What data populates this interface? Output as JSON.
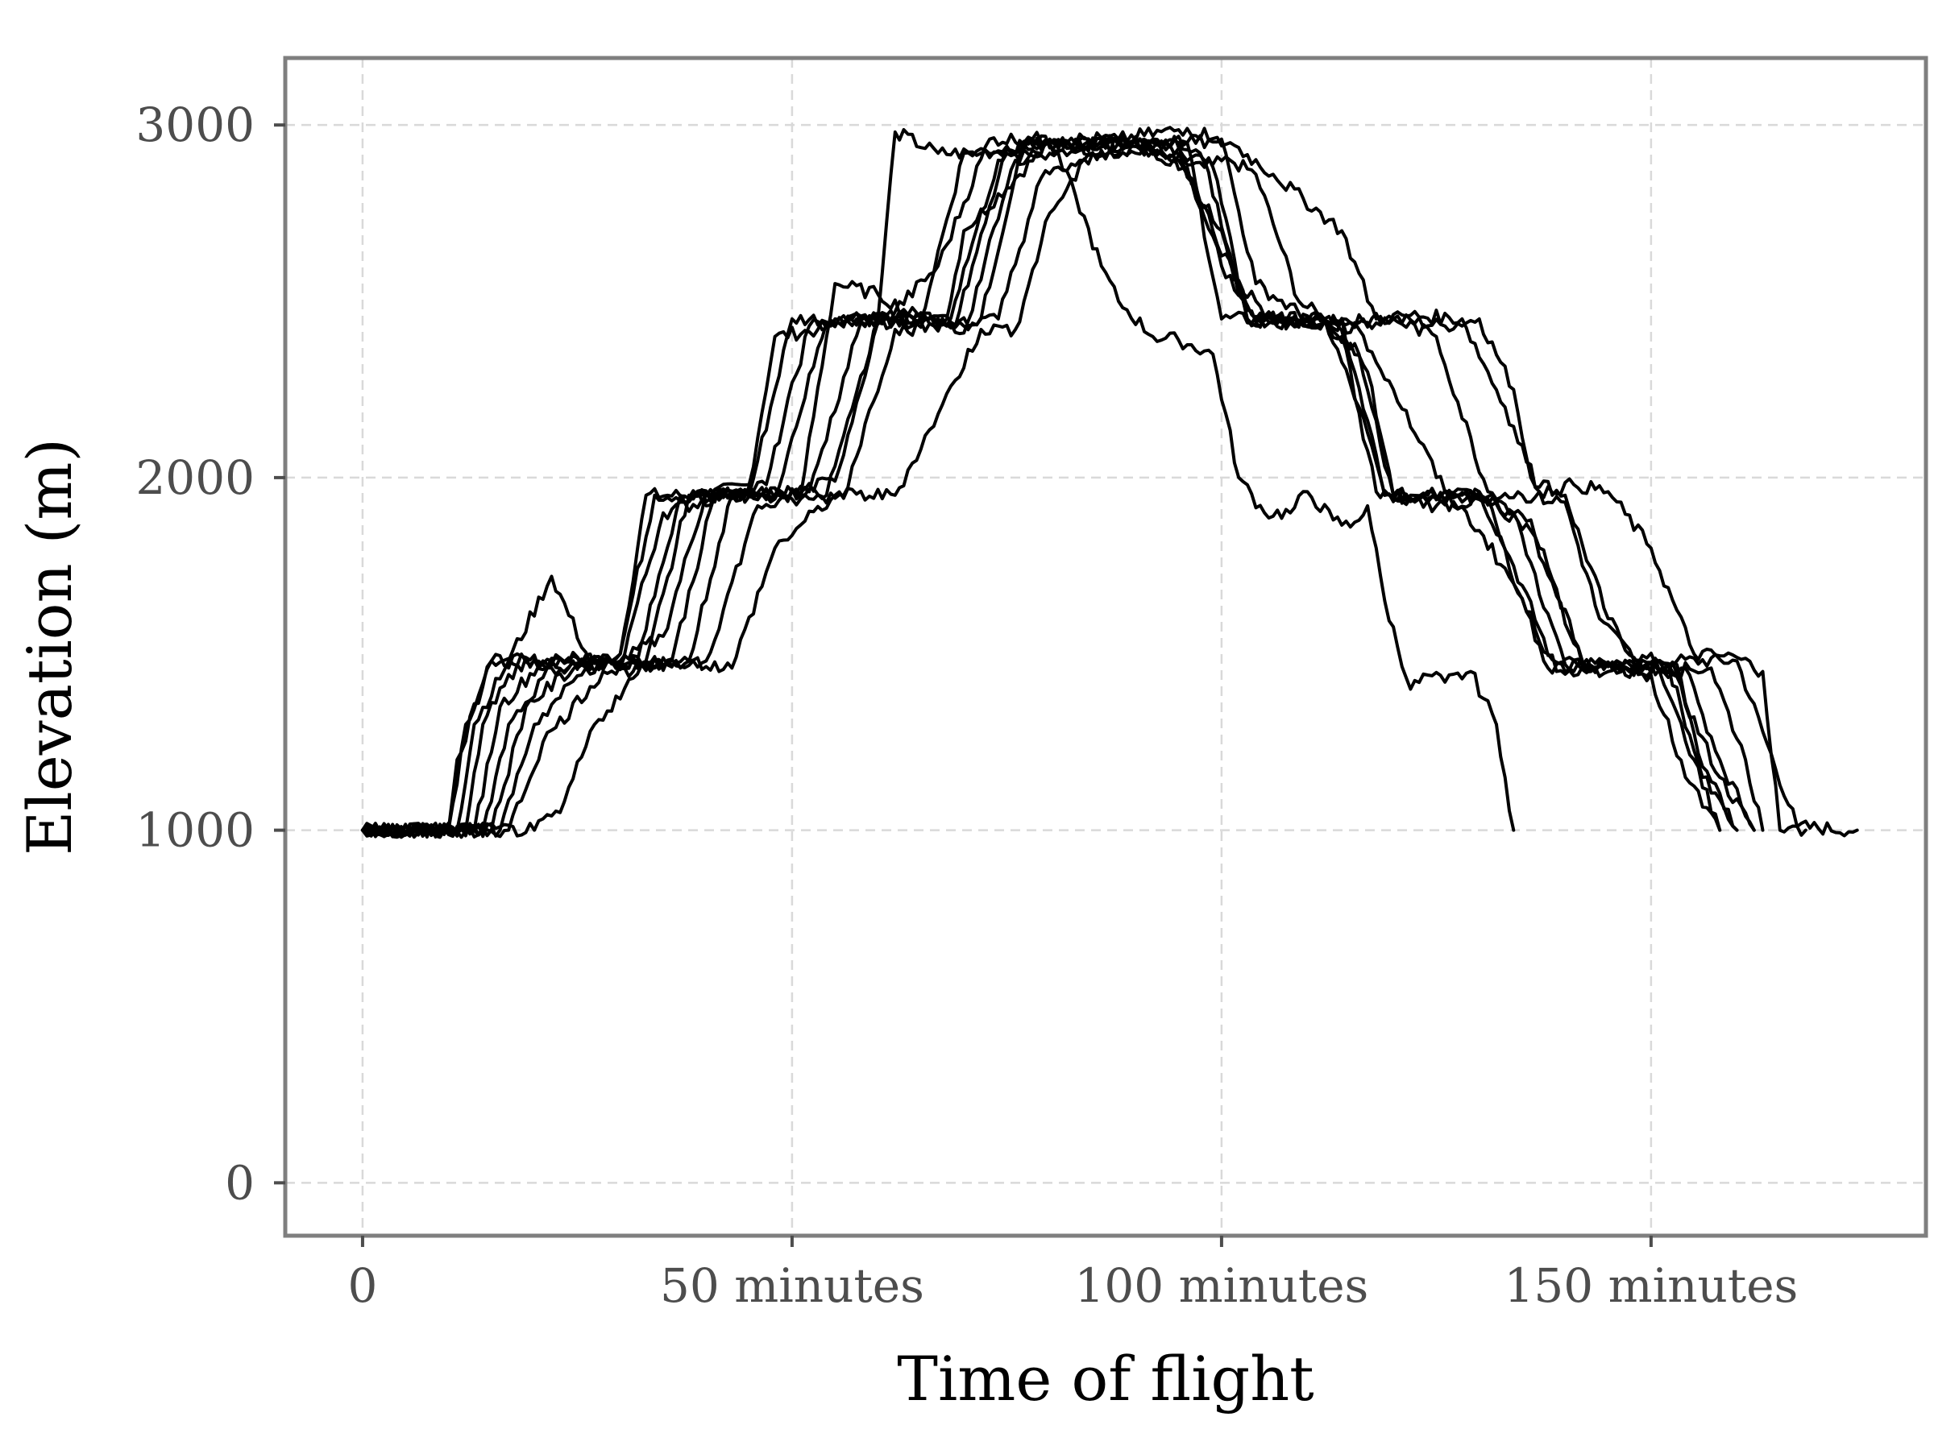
{
  "chart_data": {
    "type": "line",
    "xlabel": "Time of flight",
    "ylabel": "Elevation (m)",
    "x_unit": "minutes",
    "xlim": [
      -9,
      182
    ],
    "ylim": [
      -150,
      3190
    ],
    "x_ticks": [
      {
        "value": 0,
        "label": "0"
      },
      {
        "value": 50,
        "label": "50 minutes"
      },
      {
        "value": 100,
        "label": "100 minutes"
      },
      {
        "value": 150,
        "label": "150 minutes"
      }
    ],
    "y_ticks": [
      {
        "value": 0,
        "label": "0"
      },
      {
        "value": 1000,
        "label": "1000"
      },
      {
        "value": 2000,
        "label": "2000"
      },
      {
        "value": 3000,
        "label": "3000"
      }
    ],
    "grid": true,
    "legend": "none",
    "line_color": "#000000",
    "series": [
      {
        "x": [
          0,
          10,
          11,
          15,
          20,
          24,
          30,
          33,
          40,
          45,
          48,
          53,
          57,
          61,
          68,
          70,
          80,
          82,
          86,
          90,
          94,
          98,
          101,
          104,
          107,
          109,
          112,
          114,
          117,
          120,
          126,
          130,
          134,
          136,
          140,
          145,
          148,
          151,
          153,
          160,
          167,
          174
        ],
        "y": [
          1000,
          1000,
          1200,
          1480,
          1480,
          1460,
          1500,
          1950,
          1950,
          1980,
          2400,
          2420,
          2450,
          2460,
          2450,
          2700,
          2950,
          2950,
          2920,
          2940,
          2900,
          2880,
          2900,
          2860,
          2650,
          2500,
          2450,
          2450,
          2440,
          2450,
          2430,
          2450,
          2250,
          2000,
          1950,
          1600,
          1490,
          1480,
          1480,
          1480,
          1010,
          1000
        ]
      },
      {
        "x": [
          0,
          10,
          12,
          15,
          22,
          30,
          34,
          40,
          45,
          50,
          55,
          60,
          62,
          67,
          72,
          80,
          88,
          96,
          100,
          105,
          112,
          116,
          119,
          122,
          130,
          134,
          139,
          143,
          152,
          158,
          162
        ],
        "y": [
          1000,
          1000,
          1300,
          1480,
          1480,
          1500,
          1950,
          1950,
          1950,
          2450,
          2450,
          2450,
          2980,
          2920,
          2920,
          2950,
          2950,
          2950,
          2450,
          2450,
          2450,
          2200,
          1950,
          1950,
          1960,
          1750,
          1450,
          1460,
          1470,
          1150,
          1000
        ]
      },
      {
        "x": [
          0,
          11,
          13,
          17,
          22,
          27,
          30,
          35,
          40,
          45,
          51,
          55,
          60,
          65,
          70,
          80,
          83,
          86,
          88,
          92,
          95,
          99,
          102,
          105,
          108,
          110,
          113,
          115,
          117,
          119,
          122,
          124,
          126,
          129,
          132
        ],
        "y": [
          1000,
          1000,
          1300,
          1480,
          1720,
          1450,
          1480,
          1550,
          1960,
          1950,
          1950,
          2550,
          2520,
          2450,
          2920,
          2950,
          2800,
          2600,
          2500,
          2400,
          2390,
          2350,
          2000,
          1900,
          1900,
          1960,
          1880,
          1860,
          1920,
          1650,
          1400,
          1440,
          1420,
          1450,
          1300
        ]
      },
      {
        "x": [
          132,
          133,
          134
        ],
        "y": [
          1300,
          1150,
          1000
        ]
      },
      {
        "x": [
          0,
          12,
          14,
          18,
          24,
          30,
          35,
          42,
          47,
          52,
          56,
          61,
          67,
          73,
          80,
          88,
          96,
          100,
          104,
          110,
          113,
          117,
          120,
          125,
          131,
          134,
          138,
          142,
          150,
          157,
          161,
          163
        ],
        "y": [
          1000,
          1000,
          1300,
          1470,
          1480,
          1470,
          1900,
          1950,
          1980,
          2430,
          2440,
          2450,
          2600,
          2960,
          2960,
          2960,
          2990,
          2960,
          2550,
          2450,
          2440,
          2300,
          1950,
          1920,
          1940,
          1700,
          1460,
          1470,
          1450,
          1460,
          1200,
          1000
        ]
      },
      {
        "x": [
          0,
          13,
          16,
          21,
          27,
          32,
          37,
          43,
          48,
          54,
          57,
          62,
          68,
          74,
          80,
          90,
          96,
          101,
          106,
          114,
          118,
          122,
          128,
          133,
          137,
          141,
          145,
          150,
          155,
          160,
          163,
          165,
          168
        ],
        "y": [
          1000,
          1000,
          1350,
          1480,
          1480,
          1480,
          1950,
          1950,
          1950,
          2440,
          2460,
          2450,
          2430,
          2900,
          2920,
          2960,
          2950,
          2950,
          2860,
          2700,
          2450,
          2460,
          2450,
          2200,
          1960,
          1980,
          1960,
          1800,
          1500,
          1490,
          1450,
          1000,
          1000
        ]
      },
      {
        "x": [
          0,
          14,
          17,
          22,
          28,
          33,
          38,
          44,
          50,
          55,
          60,
          66,
          70,
          76,
          80,
          88,
          95,
          99,
          103,
          108,
          115,
          120,
          125,
          131,
          135,
          140,
          144,
          149,
          154,
          158,
          162
        ],
        "y": [
          1000,
          1000,
          1300,
          1460,
          1470,
          1480,
          1950,
          1950,
          1960,
          1990,
          2440,
          2450,
          2410,
          2900,
          2940,
          2950,
          2950,
          2880,
          2450,
          2440,
          2440,
          2450,
          2400,
          1960,
          1950,
          1930,
          1600,
          1460,
          1460,
          1200,
          1000
        ]
      },
      {
        "x": [
          0,
          15,
          19,
          25,
          30,
          36,
          41,
          47,
          52,
          58,
          63,
          69,
          75,
          80,
          89,
          95,
          99,
          104,
          108,
          114,
          119,
          124,
          130,
          136,
          142,
          147,
          152,
          156,
          160
        ],
        "y": [
          1000,
          1000,
          1350,
          1470,
          1480,
          1480,
          1950,
          1950,
          1960,
          2440,
          2440,
          2430,
          2930,
          2950,
          2940,
          2920,
          2700,
          2440,
          2440,
          2450,
          1950,
          1950,
          1960,
          1850,
          1470,
          1460,
          1470,
          1150,
          1000
        ]
      },
      {
        "x": [
          0,
          16,
          20,
          26,
          32,
          38,
          43,
          49,
          54,
          60,
          66,
          72,
          77,
          82,
          90,
          96,
          100,
          104,
          110,
          114,
          118,
          122,
          128,
          134,
          140,
          146,
          151,
          155,
          158
        ],
        "y": [
          1000,
          1000,
          1300,
          1460,
          1470,
          1480,
          1950,
          1950,
          1950,
          2450,
          2450,
          2450,
          2950,
          2950,
          2950,
          2880,
          2600,
          2450,
          2450,
          2400,
          1960,
          1940,
          1950,
          1900,
          1470,
          1460,
          1450,
          1200,
          1000
        ]
      },
      {
        "x": [
          0,
          17,
          21,
          28,
          34,
          40,
          46,
          52,
          56,
          62,
          68,
          74,
          79,
          84,
          92,
          98,
          102,
          106,
          112,
          116,
          120,
          124,
          130,
          136,
          142,
          148,
          153,
          156,
          160
        ],
        "y": [
          1000,
          1000,
          1250,
          1450,
          1460,
          1480,
          1920,
          1940,
          1950,
          2420,
          2430,
          2450,
          2850,
          2900,
          2950,
          2900,
          2550,
          2450,
          2440,
          2350,
          1950,
          1930,
          1950,
          1880,
          1480,
          1460,
          1470,
          1180,
          1000
        ]
      },
      {
        "x": [
          0,
          20,
          23,
          27,
          33,
          38,
          43,
          48,
          55,
          62,
          67,
          72,
          76,
          80,
          85,
          90,
          95,
          100,
          103,
          107,
          111,
          116,
          120,
          126,
          130,
          134,
          138,
          143,
          146,
          150,
          154,
          158
        ],
        "y": [
          1000,
          1000,
          1050,
          1300,
          1470,
          1480,
          1460,
          1800,
          1950,
          1950,
          2180,
          2420,
          2420,
          2750,
          2920,
          2920,
          2900,
          2700,
          2450,
          2440,
          2450,
          2420,
          2250,
          1960,
          1850,
          1700,
          1500,
          1450,
          1460,
          1440,
          1150,
          1000
        ]
      }
    ]
  }
}
